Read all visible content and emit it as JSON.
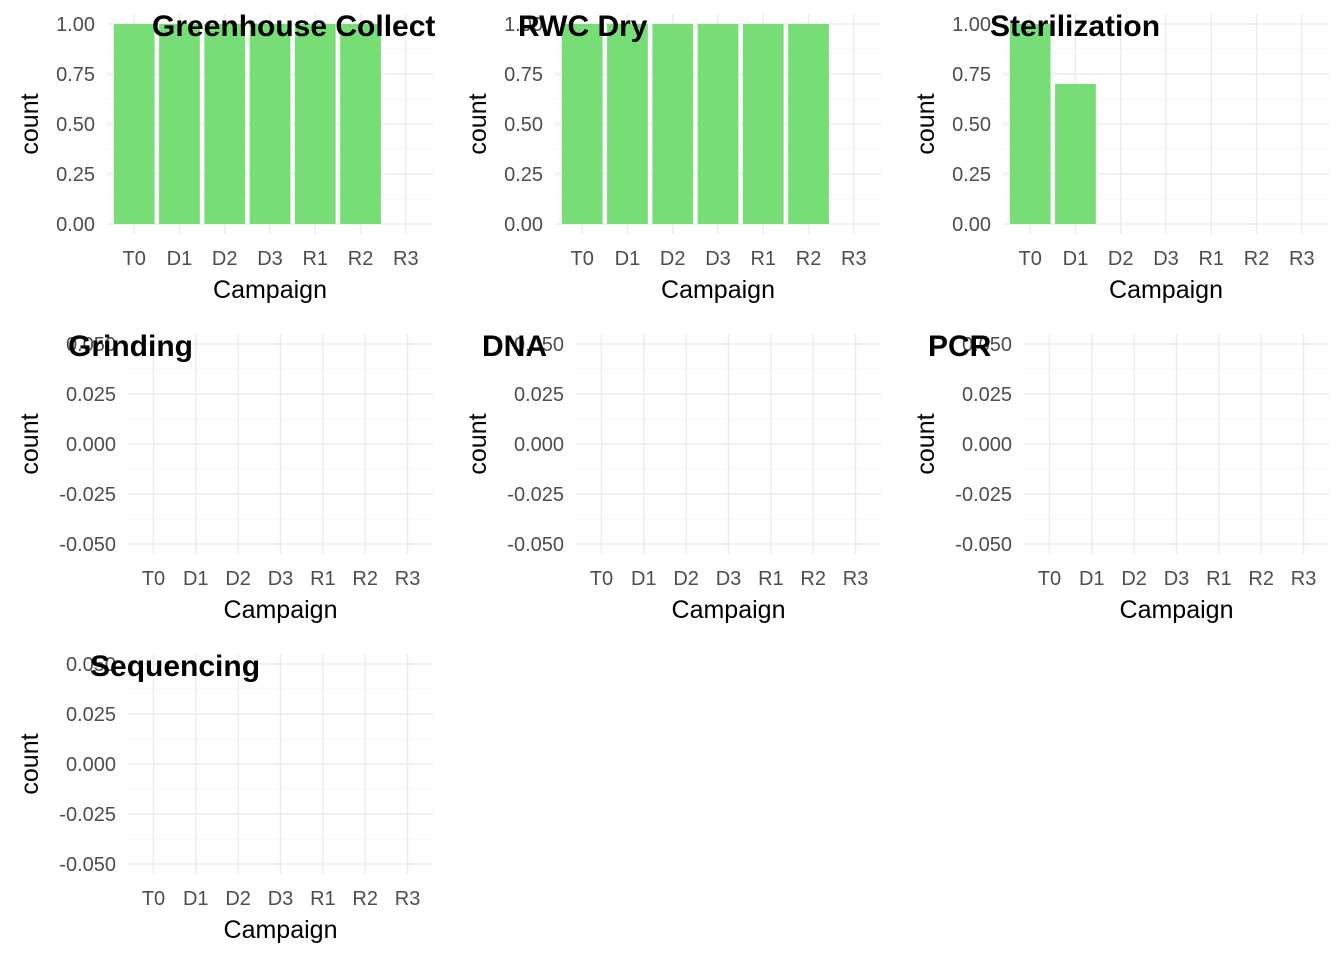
{
  "chart_data": [
    {
      "type": "bar",
      "title": "Greenhouse Collect",
      "xlabel": "Campaign",
      "ylabel": "count",
      "categories": [
        "T0",
        "D1",
        "D2",
        "D3",
        "R1",
        "R2",
        "R3"
      ],
      "values": [
        1,
        1,
        1,
        1,
        1,
        1,
        0
      ],
      "ylim": [
        0,
        1
      ],
      "yticks": [
        "0.00",
        "0.25",
        "0.50",
        "0.75",
        "1.00"
      ],
      "grid": true
    },
    {
      "type": "bar",
      "title": "RWC Dry",
      "xlabel": "Campaign",
      "ylabel": "count",
      "categories": [
        "T0",
        "D1",
        "D2",
        "D3",
        "R1",
        "R2",
        "R3"
      ],
      "values": [
        1,
        1,
        1,
        1,
        1,
        1,
        0
      ],
      "ylim": [
        0,
        1
      ],
      "yticks": [
        "0.00",
        "0.25",
        "0.50",
        "0.75",
        "1.00"
      ],
      "grid": true
    },
    {
      "type": "bar",
      "title": "Sterilization",
      "xlabel": "Campaign",
      "ylabel": "count",
      "categories": [
        "T0",
        "D1",
        "D2",
        "D3",
        "R1",
        "R2",
        "R3"
      ],
      "values": [
        1,
        0.7,
        0,
        0,
        0,
        0,
        0
      ],
      "ylim": [
        0,
        1
      ],
      "yticks": [
        "0.00",
        "0.25",
        "0.50",
        "0.75",
        "1.00"
      ],
      "grid": true
    },
    {
      "type": "bar",
      "title": "Grinding",
      "xlabel": "Campaign",
      "ylabel": "count",
      "categories": [
        "T0",
        "D1",
        "D2",
        "D3",
        "R1",
        "R2",
        "R3"
      ],
      "values": [
        0,
        0,
        0,
        0,
        0,
        0,
        0
      ],
      "ylim": [
        -0.05,
        0.05
      ],
      "yticks": [
        "-0.050",
        "-0.025",
        "0.000",
        "0.025",
        "0.050"
      ],
      "grid": true
    },
    {
      "type": "bar",
      "title": "DNA",
      "xlabel": "Campaign",
      "ylabel": "count",
      "categories": [
        "T0",
        "D1",
        "D2",
        "D3",
        "R1",
        "R2",
        "R3"
      ],
      "values": [
        0,
        0,
        0,
        0,
        0,
        0,
        0
      ],
      "ylim": [
        -0.05,
        0.05
      ],
      "yticks": [
        "-0.050",
        "-0.025",
        "0.000",
        "0.025",
        "0.050"
      ],
      "grid": true
    },
    {
      "type": "bar",
      "title": "PCR",
      "xlabel": "Campaign",
      "ylabel": "count",
      "categories": [
        "T0",
        "D1",
        "D2",
        "D3",
        "R1",
        "R2",
        "R3"
      ],
      "values": [
        0,
        0,
        0,
        0,
        0,
        0,
        0
      ],
      "ylim": [
        -0.05,
        0.05
      ],
      "yticks": [
        "-0.050",
        "-0.025",
        "0.000",
        "0.025",
        "0.050"
      ],
      "grid": true
    },
    {
      "type": "bar",
      "title": "Sequencing",
      "xlabel": "Campaign",
      "ylabel": "count",
      "categories": [
        "T0",
        "D1",
        "D2",
        "D3",
        "R1",
        "R2",
        "R3"
      ],
      "values": [
        0,
        0,
        0,
        0,
        0,
        0,
        0
      ],
      "ylim": [
        -0.05,
        0.05
      ],
      "yticks": [
        "-0.050",
        "-0.025",
        "0.000",
        "0.025",
        "0.050"
      ],
      "grid": true
    }
  ],
  "colors": {
    "bar": "#77dd77"
  }
}
